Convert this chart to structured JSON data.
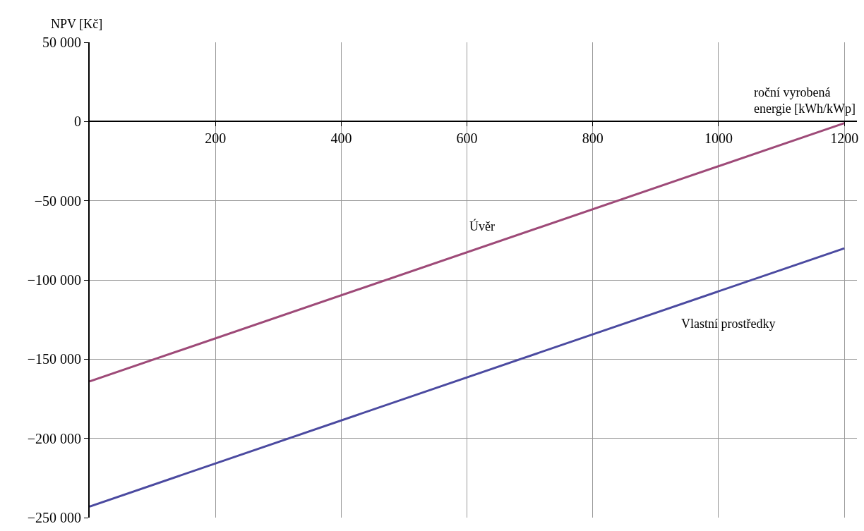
{
  "chart_data": {
    "type": "line",
    "xlabel": "roční vyrobená\nenergie [kWh/kWp]",
    "ylabel": "NPV [Kč]",
    "x": [
      0,
      1200
    ],
    "series": [
      {
        "name": "Úvěr",
        "color": "#9e4a78",
        "values": [
          -164000,
          -1000
        ]
      },
      {
        "name": "Vlastní prostředky",
        "color": "#4b4aa0",
        "values": [
          -243000,
          -80000
        ]
      }
    ],
    "xlim": [
      0,
      1220
    ],
    "xticks": [
      200,
      400,
      600,
      800,
      1000,
      1200
    ],
    "ylim": [
      -250000,
      50000
    ],
    "yticks": [
      {
        "value": -250000,
        "label": "−250 000"
      },
      {
        "value": -200000,
        "label": "−200 000"
      },
      {
        "value": -150000,
        "label": "−150 000"
      },
      {
        "value": -100000,
        "label": "−100 000"
      },
      {
        "value": -50000,
        "label": "−50 000"
      },
      {
        "value": 0,
        "label": "0"
      },
      {
        "value": 50000,
        "label": "50 000"
      }
    ],
    "grid": true,
    "legend": false,
    "marker": "none",
    "line_style": "solid"
  }
}
